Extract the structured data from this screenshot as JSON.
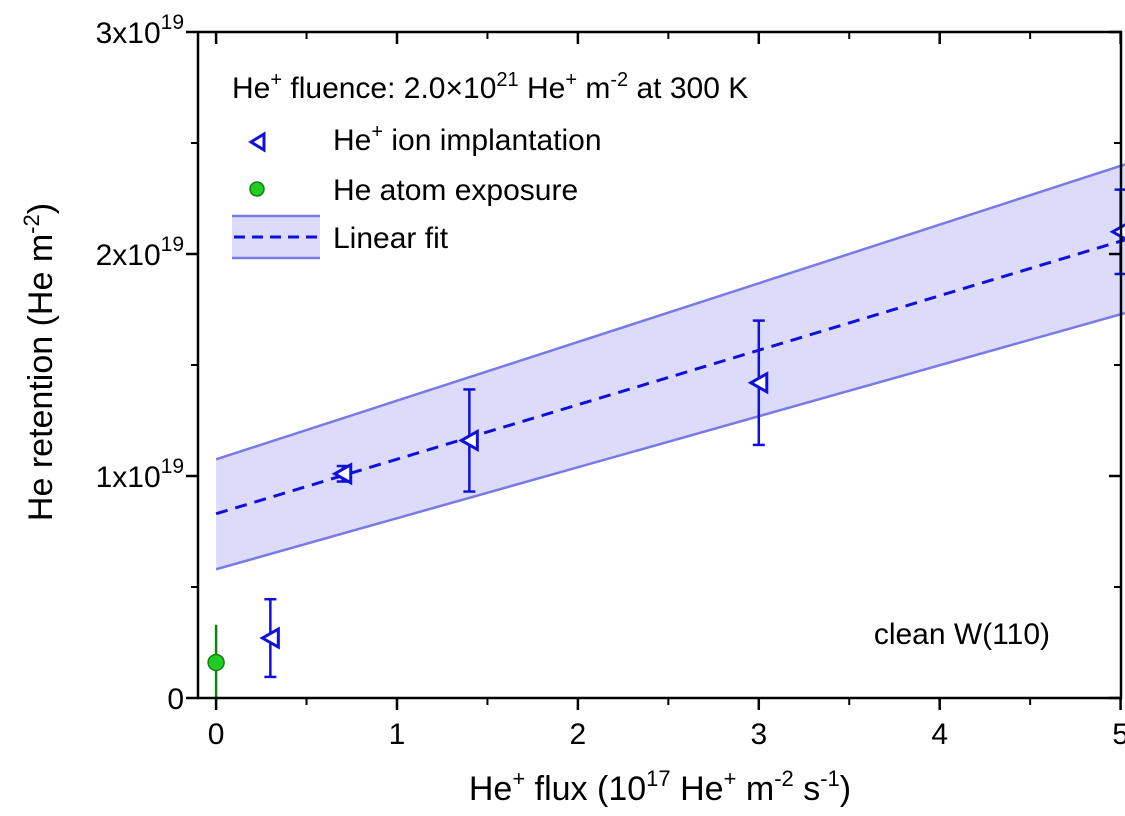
{
  "chart_data": {
    "type": "scatter",
    "xlabel": {
      "a": "He",
      "a_sup": "+",
      "b": " flux (10",
      "b_sup": "17",
      "c": " He",
      "c_sup": "+",
      "d": " m",
      "d_sup": "-2",
      "e": " s",
      "e_sup": "-1",
      "f": ")"
    },
    "ylabel": {
      "a": "He retention (He m",
      "a_sup": "-2",
      "b": ")"
    },
    "xlim": [
      -0.1,
      5.05
    ],
    "ylim": [
      0,
      3e+19
    ],
    "x_ticks": [
      0,
      1,
      2,
      3,
      4,
      5
    ],
    "x_tick_labels": [
      "0",
      "1",
      "2",
      "3",
      "4",
      "5"
    ],
    "y_ticks": [
      0,
      1e+19,
      2e+19,
      3e+19
    ],
    "y_tick_labels": [
      {
        "base": "0",
        "exp": ""
      },
      {
        "base": "1x10",
        "exp": "19"
      },
      {
        "base": "2x10",
        "exp": "19"
      },
      {
        "base": "3x10",
        "exp": "19"
      }
    ],
    "y_minor_ticks": [
      5e+18,
      1.5e+19,
      2.5e+19
    ],
    "legend_title": {
      "a": "He",
      "a_sup": "+",
      "b": " fluence: 2.0×10",
      "b_sup": "21",
      "c": " He",
      "c_sup": "+",
      "d": " m",
      "d_sup": "-2",
      "e": " at 300 K"
    },
    "legend_placement": "top-left",
    "annotation": "clean W(110)",
    "series": [
      {
        "name": "He",
        "name_sup": "+",
        "name_rest": " ion implantation",
        "marker": "triangle-left",
        "color": "#1010dd",
        "points": [
          {
            "x": 0.3,
            "y": 2.7e+18,
            "err": 1.75e+18
          },
          {
            "x": 0.7,
            "y": 1.01e+19,
            "err": 3.5e+17
          },
          {
            "x": 1.4,
            "y": 1.16e+19,
            "err": 2.3e+18
          },
          {
            "x": 3.0,
            "y": 1.42e+19,
            "err": 2.8e+18
          },
          {
            "x": 5.0,
            "y": 2.1e+19,
            "err": 1.9e+18
          }
        ]
      },
      {
        "name": "He atom exposure",
        "marker": "circle",
        "color": "#22cc22",
        "edge_color": "#138013",
        "points": [
          {
            "x": 0.0,
            "y": 1.6e+18,
            "err": 1.7e+18
          }
        ]
      }
    ],
    "fit": {
      "name": "Linear fit",
      "style": "dashed",
      "color": "#1010dd",
      "band_fill": "#dcdcfa",
      "band_line": "#7a7ae6",
      "center": {
        "x0": 0,
        "y0": 8.3e+18,
        "x1": 5.05,
        "y1": 2.07e+19
      },
      "upper": {
        "x0": 0,
        "y0": 1.075e+19,
        "x1": 5.05,
        "y1": 2.41e+19
      },
      "lower": {
        "x0": 0,
        "y0": 5.8e+18,
        "x1": 5.05,
        "y1": 1.74e+19
      }
    }
  }
}
